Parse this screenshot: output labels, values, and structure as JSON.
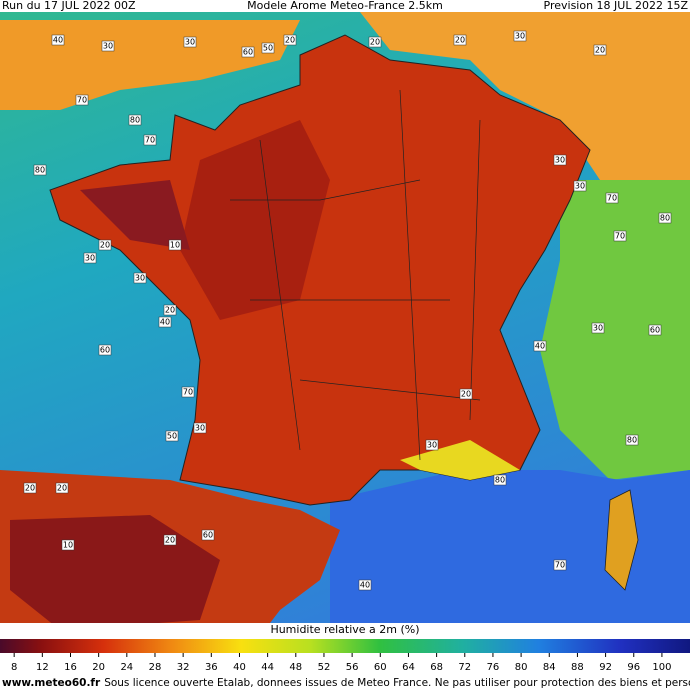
{
  "header": {
    "run": "Run du 17 JUL 2022 00Z",
    "model": "Modele Arome Meteo-France 2.5km",
    "forecast": "Prevision 18 JUL 2022 15Z"
  },
  "map": {
    "labels": [
      "40",
      "30",
      "30",
      "20",
      "20",
      "20",
      "30",
      "20",
      "60",
      "50",
      "70",
      "80",
      "80",
      "70",
      "30",
      "70",
      "70",
      "80",
      "30",
      "10",
      "20",
      "30",
      "30",
      "20",
      "40",
      "60",
      "70",
      "50",
      "30",
      "20",
      "20",
      "20",
      "60",
      "40",
      "80",
      "70",
      "80",
      "60",
      "30",
      "40",
      "20",
      "30",
      "10"
    ]
  },
  "colorbar": {
    "title": "Humidite relative a 2m (%)",
    "lim": [
      4,
      102
    ],
    "ticks": [
      8,
      12,
      16,
      20,
      24,
      28,
      32,
      36,
      40,
      44,
      48,
      52,
      56,
      60,
      64,
      68,
      72,
      76,
      80,
      84,
      88,
      92,
      96,
      100
    ]
  },
  "footer": {
    "site": "www.meteo60.fr",
    "text": "Sous licence ouverte Etalab, donnees issues de Meteo France. Ne pas utiliser pour protection des biens et personnes"
  }
}
